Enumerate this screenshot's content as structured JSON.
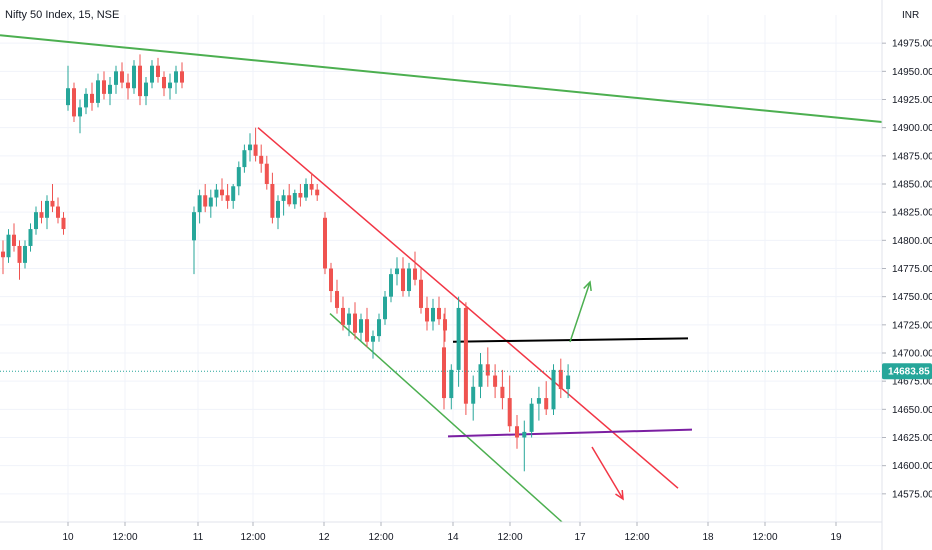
{
  "header": {
    "title": "Nifty 50 Index, 15, NSE",
    "currency": "INR"
  },
  "price_badge": {
    "value": "14683.85",
    "color": "#26a69a"
  },
  "colors": {
    "up": "#26a69a",
    "down": "#ef5350",
    "upper_trendline": "#4caf50",
    "falling_channel_top": "#f23645",
    "falling_channel_bottom": "#4caf50",
    "resistance": "#000000",
    "support": "#7b1fa2",
    "arrow_up": "#4caf50",
    "arrow_down": "#f23645"
  },
  "chart_data": {
    "type": "candlestick",
    "title": "Nifty 50 Index, 15, NSE",
    "ylim": [
      14550,
      15000
    ],
    "y_ticks": [
      14575,
      14600,
      14625,
      14650,
      14675,
      14700,
      14725,
      14750,
      14775,
      14800,
      14825,
      14850,
      14875,
      14900,
      14925,
      14950,
      14975
    ],
    "x_ticks": [
      "10",
      "12:00",
      "11",
      "12:00",
      "12",
      "12:00",
      "14",
      "12:00",
      "17",
      "12:00",
      "18",
      "12:00",
      "19"
    ],
    "last_price": 14683.85,
    "candles": [
      [
        14790,
        14800,
        14770,
        14785
      ],
      [
        14785,
        14810,
        14780,
        14805
      ],
      [
        14805,
        14815,
        14790,
        14795
      ],
      [
        14795,
        14800,
        14765,
        14780
      ],
      [
        14780,
        14800,
        14775,
        14795
      ],
      [
        14795,
        14815,
        14790,
        14810
      ],
      [
        14810,
        14830,
        14805,
        14825
      ],
      [
        14825,
        14835,
        14815,
        14820
      ],
      [
        14820,
        14840,
        14810,
        14835
      ],
      [
        14835,
        14850,
        14825,
        14830
      ],
      [
        14830,
        14838,
        14815,
        14820
      ],
      [
        14820,
        14825,
        14805,
        14810
      ],
      [
        14920,
        14955,
        14915,
        14935
      ],
      [
        14935,
        14940,
        14905,
        14910
      ],
      [
        14910,
        14925,
        14895,
        14918
      ],
      [
        14918,
        14935,
        14912,
        14930
      ],
      [
        14930,
        14940,
        14915,
        14922
      ],
      [
        14922,
        14948,
        14918,
        14942
      ],
      [
        14942,
        14950,
        14925,
        14930
      ],
      [
        14930,
        14945,
        14920,
        14938
      ],
      [
        14938,
        14955,
        14930,
        14950
      ],
      [
        14950,
        14958,
        14935,
        14940
      ],
      [
        14940,
        14948,
        14925,
        14935
      ],
      [
        14935,
        14960,
        14930,
        14955
      ],
      [
        14955,
        14965,
        14920,
        14928
      ],
      [
        14928,
        14945,
        14920,
        14940
      ],
      [
        14940,
        14960,
        14935,
        14955
      ],
      [
        14955,
        14962,
        14940,
        14945
      ],
      [
        14945,
        14950,
        14928,
        14935
      ],
      [
        14935,
        14948,
        14925,
        14940
      ],
      [
        14940,
        14955,
        14930,
        14950
      ],
      [
        14950,
        14958,
        14935,
        14940
      ],
      [
        14800,
        14830,
        14770,
        14825
      ],
      [
        14825,
        14845,
        14815,
        14840
      ],
      [
        14840,
        14850,
        14825,
        14830
      ],
      [
        14830,
        14845,
        14820,
        14838
      ],
      [
        14838,
        14850,
        14830,
        14845
      ],
      [
        14845,
        14855,
        14835,
        14840
      ],
      [
        14840,
        14850,
        14828,
        14835
      ],
      [
        14835,
        14850,
        14828,
        14848
      ],
      [
        14848,
        14870,
        14840,
        14865
      ],
      [
        14865,
        14885,
        14860,
        14880
      ],
      [
        14880,
        14895,
        14870,
        14885
      ],
      [
        14885,
        14900,
        14870,
        14875
      ],
      [
        14875,
        14885,
        14860,
        14868
      ],
      [
        14868,
        14875,
        14845,
        14850
      ],
      [
        14850,
        14860,
        14815,
        14820
      ],
      [
        14820,
        14840,
        14810,
        14835
      ],
      [
        14835,
        14845,
        14822,
        14840
      ],
      [
        14840,
        14850,
        14830,
        14832
      ],
      [
        14832,
        14845,
        14828,
        14842
      ],
      [
        14842,
        14850,
        14830,
        14838
      ],
      [
        14838,
        14855,
        14835,
        14850
      ],
      [
        14850,
        14860,
        14840,
        14845
      ],
      [
        14845,
        14850,
        14835,
        14840
      ],
      [
        14820,
        14825,
        14770,
        14775
      ],
      [
        14775,
        14780,
        14745,
        14755
      ],
      [
        14755,
        14765,
        14735,
        14740
      ],
      [
        14740,
        14750,
        14720,
        14725
      ],
      [
        14725,
        14740,
        14715,
        14735
      ],
      [
        14735,
        14745,
        14712,
        14718
      ],
      [
        14718,
        14735,
        14710,
        14730
      ],
      [
        14730,
        14740,
        14705,
        14710
      ],
      [
        14710,
        14720,
        14695,
        14715
      ],
      [
        14715,
        14735,
        14710,
        14730
      ],
      [
        14730,
        14755,
        14725,
        14750
      ],
      [
        14750,
        14775,
        14745,
        14770
      ],
      [
        14770,
        14785,
        14760,
        14775
      ],
      [
        14775,
        14785,
        14750,
        14755
      ],
      [
        14755,
        14780,
        14750,
        14775
      ],
      [
        14775,
        14790,
        14760,
        14765
      ],
      [
        14765,
        14775,
        14735,
        14740
      ],
      [
        14740,
        14750,
        14720,
        14728
      ],
      [
        14728,
        14748,
        14720,
        14740
      ],
      [
        14740,
        14750,
        14725,
        14730
      ],
      [
        14730,
        14740,
        14710,
        14720
      ],
      [
        14705,
        14735,
        14650,
        14660
      ],
      [
        14660,
        14690,
        14650,
        14685
      ],
      [
        14685,
        14750,
        14670,
        14740
      ],
      [
        14740,
        14745,
        14645,
        14655
      ],
      [
        14655,
        14680,
        14640,
        14670
      ],
      [
        14670,
        14700,
        14660,
        14690
      ],
      [
        14690,
        14705,
        14670,
        14680
      ],
      [
        14680,
        14690,
        14660,
        14670
      ],
      [
        14670,
        14685,
        14650,
        14660
      ],
      [
        14660,
        14680,
        14630,
        14635
      ],
      [
        14635,
        14645,
        14615,
        14625
      ],
      [
        14625,
        14640,
        14595,
        14630
      ],
      [
        14630,
        14660,
        14625,
        14655
      ],
      [
        14655,
        14670,
        14640,
        14660
      ],
      [
        14660,
        14675,
        14645,
        14650
      ],
      [
        14650,
        14690,
        14645,
        14685
      ],
      [
        14685,
        14695,
        14660,
        14668
      ],
      [
        14668,
        14690,
        14660,
        14680
      ]
    ],
    "drawings": [
      {
        "name": "long-term-resistance",
        "from": [
          "10 open",
          14982
        ],
        "to": [
          "19 close",
          14905
        ]
      },
      {
        "name": "falling-channel-top",
        "from": [
          "11 12:00",
          14900
        ],
        "to": [
          "17 late",
          14580
        ]
      },
      {
        "name": "falling-channel-bottom",
        "from": [
          "12 open",
          14735
        ],
        "to": [
          "17",
          14550
        ]
      },
      {
        "name": "horizontal-resistance",
        "from": [
          "14",
          14710
        ],
        "to": [
          "18",
          14713
        ]
      },
      {
        "name": "horizontal-support",
        "from": [
          "14",
          14626
        ],
        "to": [
          "18",
          14632
        ]
      }
    ]
  }
}
